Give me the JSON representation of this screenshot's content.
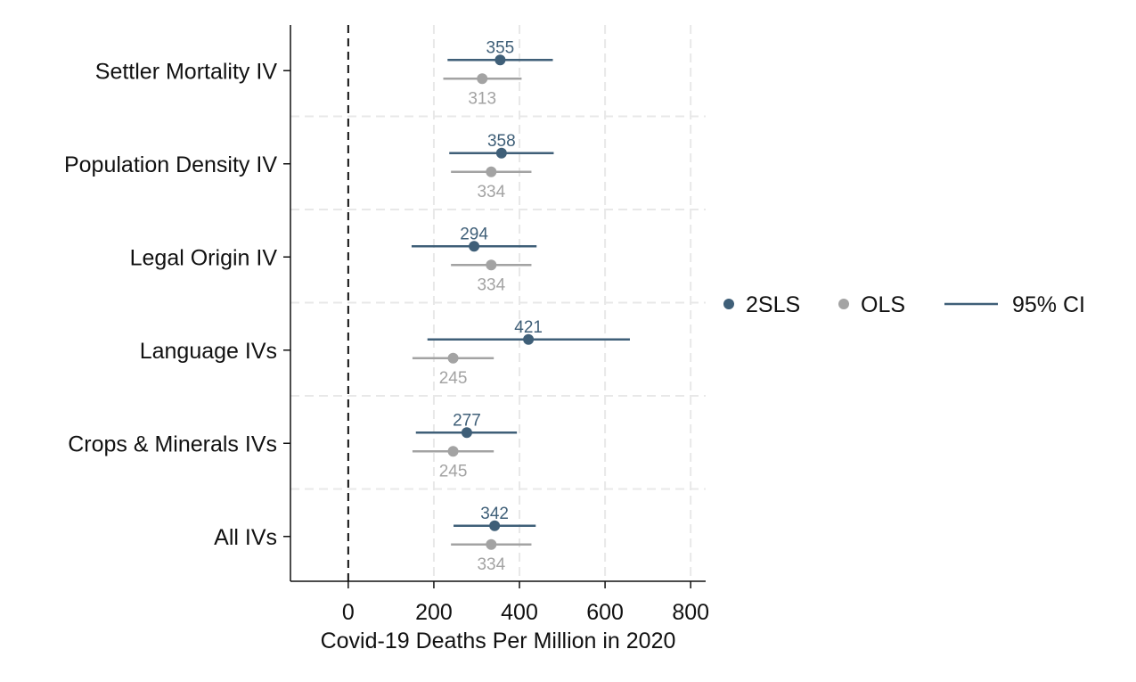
{
  "chart_data": {
    "type": "scatter",
    "title": "",
    "xlabel": "Covid-19 Deaths Per Million in 2020",
    "ylabel": "",
    "xlim": [
      -135,
      835
    ],
    "xticks": [
      0,
      200,
      400,
      600,
      800
    ],
    "xtick_labels": [
      "0",
      "200",
      "400",
      "600",
      "800"
    ],
    "reference_line_x": 0,
    "grid": true,
    "legend_position": "right",
    "categories": [
      "Settler Mortality IV",
      "Population Density IV",
      "Legal Origin IV",
      "Language IVs",
      "Crops & Minerals IVs",
      "All IVs"
    ],
    "series": [
      {
        "name": "2SLS",
        "color": "#3f5f78",
        "values": [
          355,
          358,
          294,
          421,
          277,
          342
        ],
        "labels": [
          "355",
          "358",
          "294",
          "421",
          "277",
          "342"
        ],
        "ci_low": [
          232,
          236,
          148,
          185,
          158,
          246
        ],
        "ci_high": [
          478,
          480,
          440,
          658,
          394,
          438
        ]
      },
      {
        "name": "OLS",
        "color": "#a3a3a3",
        "values": [
          313,
          334,
          334,
          245,
          245,
          334
        ],
        "labels": [
          "313",
          "334",
          "334",
          "245",
          "245",
          "334"
        ],
        "ci_low": [
          222,
          240,
          240,
          150,
          150,
          240
        ],
        "ci_high": [
          405,
          428,
          428,
          340,
          340,
          428
        ]
      }
    ],
    "legend": [
      {
        "label": "2SLS",
        "kind": "marker",
        "color": "#3f5f78"
      },
      {
        "label": "OLS",
        "kind": "marker",
        "color": "#a3a3a3"
      },
      {
        "label": "95% CI",
        "kind": "line",
        "color": "#3f5f78"
      }
    ]
  }
}
